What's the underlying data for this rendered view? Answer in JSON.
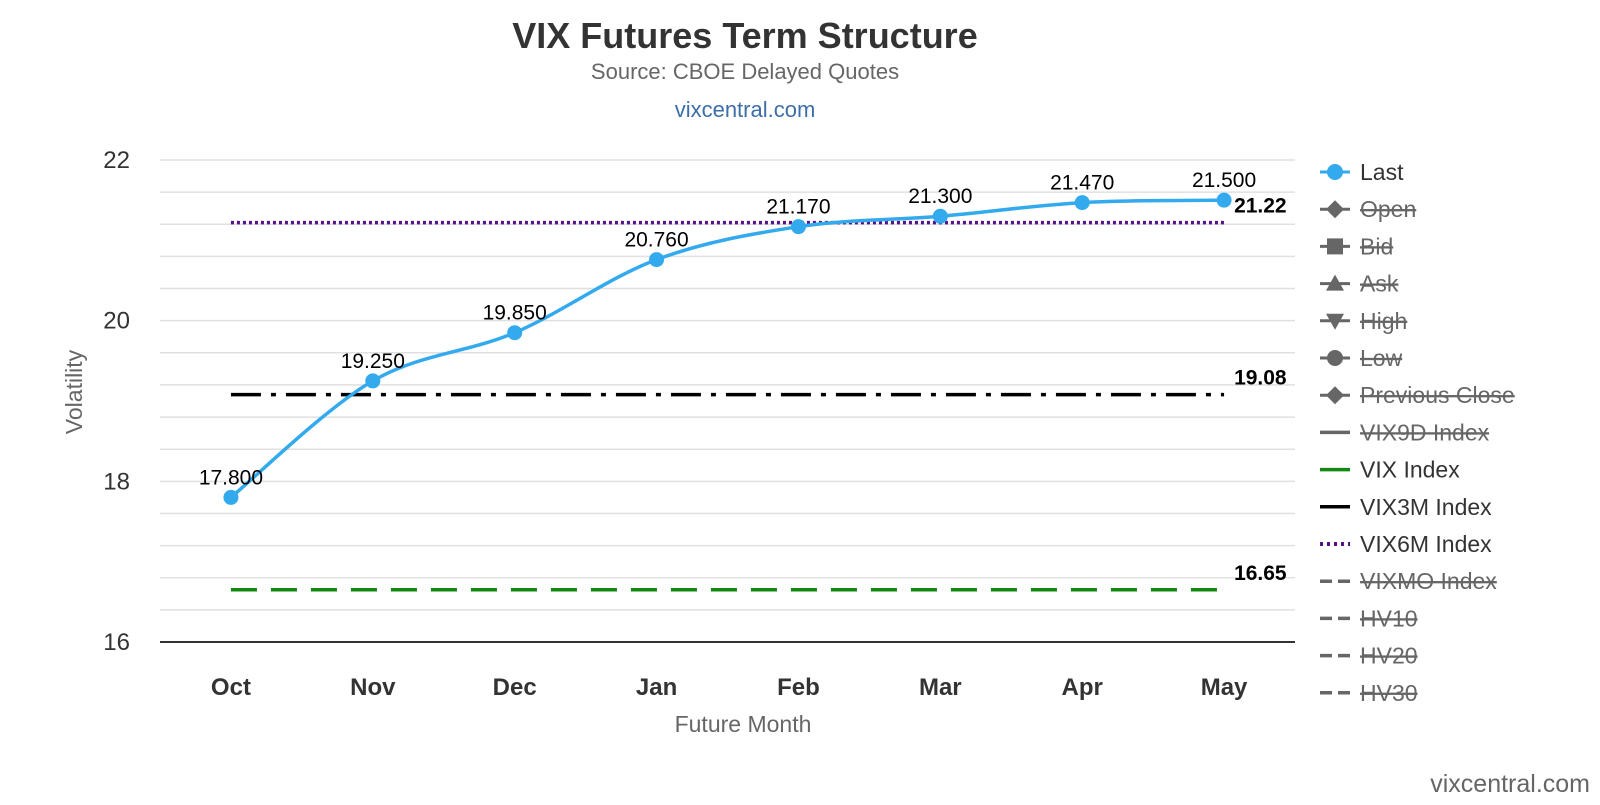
{
  "chart_data": {
    "type": "line",
    "title": "VIX Futures Term Structure",
    "subtitle": "Source: CBOE Delayed Quotes",
    "link": "vixcentral.com",
    "credit": "vixcentral.com",
    "xlabel": "Future Month",
    "ylabel": "Volatility",
    "categories": [
      "Oct",
      "Nov",
      "Dec",
      "Jan",
      "Feb",
      "Mar",
      "Apr",
      "May"
    ],
    "ylim": [
      16,
      22
    ],
    "yticks": [
      16,
      18,
      20,
      22
    ],
    "grid": true,
    "legend_position": "right",
    "series": [
      {
        "name": "Last",
        "values": [
          17.8,
          19.25,
          19.85,
          20.76,
          21.17,
          21.3,
          21.47,
          21.5
        ],
        "labels": [
          "17.800",
          "19.250",
          "19.850",
          "20.760",
          "21.170",
          "21.300",
          "21.470",
          "21.500"
        ],
        "color": "#33aaee"
      }
    ],
    "reference_lines": [
      {
        "name": "VIX Index",
        "value": 16.65,
        "label": "16.65",
        "color": "#118811",
        "style": "dash"
      },
      {
        "name": "VIX3M Index",
        "value": 19.08,
        "label": "19.08",
        "color": "#000000",
        "style": "dashdot"
      },
      {
        "name": "VIX6M Index",
        "value": 21.22,
        "label": "21.22",
        "color": "#551188",
        "style": "dot"
      }
    ],
    "legend": [
      {
        "name": "Last",
        "symbol": "circle",
        "color": "#33aaee",
        "hidden": false
      },
      {
        "name": "Open",
        "symbol": "diamond",
        "color": "#666666",
        "hidden": true
      },
      {
        "name": "Bid",
        "symbol": "square",
        "color": "#666666",
        "hidden": true
      },
      {
        "name": "Ask",
        "symbol": "triangle",
        "color": "#666666",
        "hidden": true
      },
      {
        "name": "High",
        "symbol": "triangle-down",
        "color": "#666666",
        "hidden": true
      },
      {
        "name": "Low",
        "symbol": "circle",
        "color": "#666666",
        "hidden": true
      },
      {
        "name": "Previous Close",
        "symbol": "diamond",
        "color": "#666666",
        "hidden": true
      },
      {
        "name": "VIX9D Index",
        "symbol": "line",
        "color": "#666666",
        "hidden": true
      },
      {
        "name": "VIX Index",
        "symbol": "line",
        "color": "#118811",
        "hidden": false
      },
      {
        "name": "VIX3M Index",
        "symbol": "line",
        "color": "#000000",
        "hidden": false
      },
      {
        "name": "VIX6M Index",
        "symbol": "dotted-line",
        "color": "#551188",
        "hidden": false
      },
      {
        "name": "VIXMO Index",
        "symbol": "dashed-line",
        "color": "#666666",
        "hidden": true
      },
      {
        "name": "HV10",
        "symbol": "dashed-line",
        "color": "#666666",
        "hidden": true
      },
      {
        "name": "HV20",
        "symbol": "dashed-line",
        "color": "#666666",
        "hidden": true
      },
      {
        "name": "HV30",
        "symbol": "dashed-line",
        "color": "#666666",
        "hidden": true
      }
    ]
  }
}
